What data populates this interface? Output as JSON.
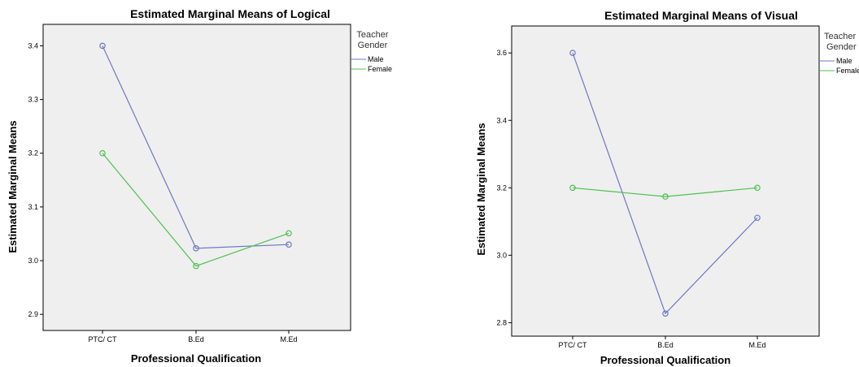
{
  "colors": {
    "male": "#6b78c4",
    "female": "#4cc24c",
    "plot_bg": "#efefef",
    "axis": "#000000"
  },
  "chart_data": [
    {
      "type": "line",
      "title": "Estimated Marginal Means of Logical",
      "xlabel": "Professional Qualification",
      "ylabel": "Estimated Marginal Means",
      "categories": [
        "PTC/ CT",
        "B.Ed",
        "M.Ed"
      ],
      "ylim": [
        2.87,
        3.44
      ],
      "yticks": [
        2.9,
        3.0,
        3.1,
        3.2,
        3.3,
        3.4
      ],
      "ytick_labels": [
        "2.9",
        "3.0",
        "3.1",
        "3.2",
        "3.3",
        "3.4"
      ],
      "legend": {
        "title_line1": "Teacher",
        "title_line2": "Gender",
        "placement": "right"
      },
      "series": [
        {
          "name": "Male",
          "values": [
            3.4,
            3.023,
            3.03
          ]
        },
        {
          "name": "Female",
          "values": [
            3.2,
            2.99,
            3.051
          ]
        }
      ]
    },
    {
      "type": "line",
      "title": "Estimated Marginal Means of Visual",
      "xlabel": "Professional Qualification",
      "ylabel": "Estimated Marginal Means",
      "categories": [
        "PTC/ CT",
        "B.Ed",
        "M.Ed"
      ],
      "ylim": [
        2.76,
        3.68
      ],
      "yticks": [
        2.8,
        3.0,
        3.2,
        3.4,
        3.6
      ],
      "ytick_labels": [
        "2.8",
        "3.0",
        "3.2",
        "3.4",
        "3.6"
      ],
      "legend": {
        "title_line1": "Teacher",
        "title_line2": "Gender",
        "placement": "right"
      },
      "series": [
        {
          "name": "Male",
          "values": [
            3.6,
            2.827,
            3.111
          ]
        },
        {
          "name": "Female",
          "values": [
            3.2,
            3.174,
            3.2
          ]
        }
      ]
    }
  ]
}
